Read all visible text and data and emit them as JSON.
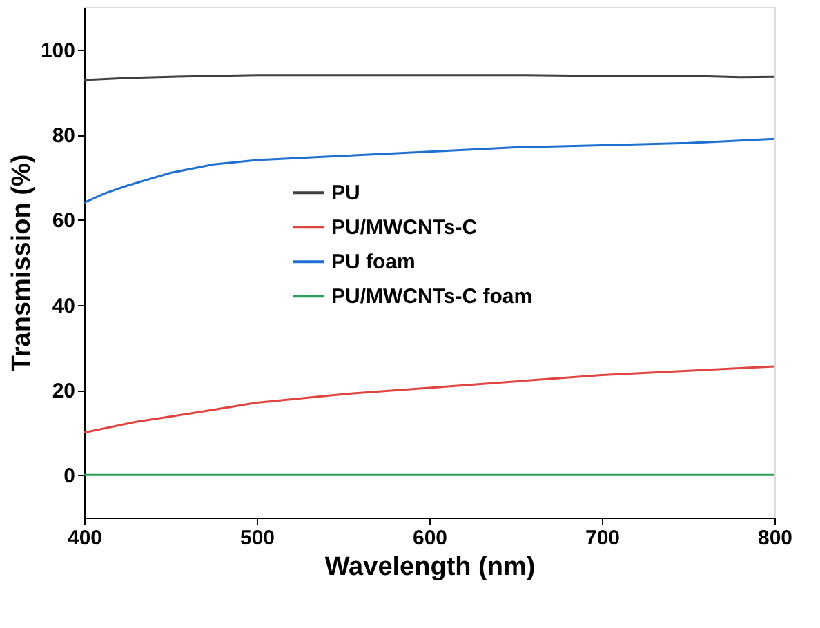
{
  "chart_data": {
    "type": "line",
    "xlabel": "Wavelength (nm)",
    "ylabel": "Transmission (%)",
    "xlim": [
      400,
      800
    ],
    "xticks": [
      400,
      500,
      600,
      700,
      800
    ],
    "ylim": [
      -10,
      110
    ],
    "yticks": [
      0,
      20,
      40,
      60,
      80,
      100
    ],
    "grid": false,
    "legend": "right",
    "line_style": "solid",
    "marker": "none",
    "series": [
      {
        "name": "PU",
        "color": "#3f3f3f",
        "x": [
          400,
          425,
          450,
          500,
          550,
          600,
          650,
          700,
          750,
          780,
          800
        ],
        "values": [
          92.8,
          93.3,
          93.6,
          94,
          94,
          94,
          94,
          93.8,
          93.8,
          93.5,
          93.6
        ]
      },
      {
        "name": "PU/MWCNTs-C",
        "color": "#e0443f",
        "x": [
          400,
          430,
          470,
          500,
          550,
          600,
          650,
          700,
          750,
          800
        ],
        "values": [
          10,
          12.5,
          15,
          17,
          19,
          20.5,
          22,
          23.5,
          24.5,
          25.5
        ]
      },
      {
        "name": "PU foam",
        "color": "#1f6fd0",
        "x": [
          400,
          412,
          425,
          450,
          475,
          500,
          550,
          600,
          650,
          700,
          750,
          800
        ],
        "values": [
          64,
          66.2,
          68,
          71,
          73,
          74,
          75,
          76,
          77,
          77.5,
          78,
          79
        ]
      },
      {
        "name": "PU/MWCNTs-C foam",
        "color": "#2ca05a",
        "x": [
          400,
          500,
          600,
          700,
          800
        ],
        "values": [
          0,
          0,
          0,
          0,
          0
        ]
      }
    ]
  }
}
